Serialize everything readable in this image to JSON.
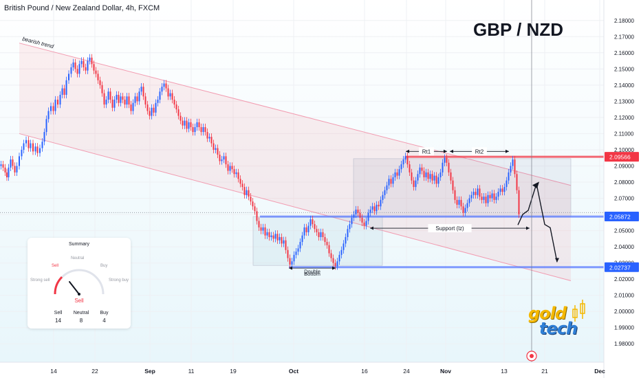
{
  "header": {
    "symbol_line": "British Pound / New Zealand Dollar, 4h, FXCM",
    "big_title": "GBP / NZD"
  },
  "chart_data": {
    "type": "candlestick",
    "ylim": [
      1.975,
      2.185
    ],
    "y_ticks": [
      "2.18000",
      "2.17000",
      "2.16000",
      "2.15000",
      "2.14000",
      "2.13000",
      "2.12000",
      "2.11000",
      "2.10000",
      "2.09000",
      "2.08000",
      "2.07000",
      "2.06000",
      "2.05000",
      "2.04000",
      "2.03000",
      "2.02000",
      "2.01000",
      "2.00000",
      "1.99000",
      "1.98000"
    ],
    "x_ticks": [
      "14",
      "22",
      "Sep",
      "11",
      "19",
      "Oct",
      "16",
      "24",
      "Nov",
      "13",
      "21",
      "Dec"
    ],
    "price_tags": [
      {
        "value": "2.09566",
        "color": "#f23645"
      },
      {
        "value": "2.05872",
        "color": "#2962ff"
      },
      {
        "value": "2.02737",
        "color": "#2962ff"
      }
    ],
    "horizontal_levels": [
      {
        "value": 2.0957,
        "color": "#f23645"
      },
      {
        "value": 2.0587,
        "color": "#5b7bff"
      },
      {
        "value": 2.0274,
        "color": "#5b7bff"
      }
    ],
    "candle_path": [
      [
        0,
        2.09
      ],
      [
        3,
        2.091
      ],
      [
        6,
        2.089
      ],
      [
        9,
        2.086
      ],
      [
        11,
        2.083
      ],
      [
        14,
        2.089
      ],
      [
        17,
        2.094
      ],
      [
        20,
        2.09
      ],
      [
        23,
        2.086
      ],
      [
        26,
        2.09
      ],
      [
        30,
        2.096
      ],
      [
        33,
        2.1
      ],
      [
        36,
        2.104
      ],
      [
        40,
        2.106
      ],
      [
        43,
        2.101
      ],
      [
        46,
        2.104
      ],
      [
        50,
        2.099
      ],
      [
        53,
        2.102
      ],
      [
        56,
        2.098
      ],
      [
        60,
        2.101
      ],
      [
        63,
        2.105
      ],
      [
        66,
        2.111
      ],
      [
        69,
        2.119
      ],
      [
        72,
        2.124
      ],
      [
        76,
        2.127
      ],
      [
        79,
        2.124
      ],
      [
        82,
        2.131
      ],
      [
        86,
        2.128
      ],
      [
        89,
        2.134
      ],
      [
        92,
        2.138
      ],
      [
        95,
        2.134
      ],
      [
        98,
        2.143
      ],
      [
        102,
        2.147
      ],
      [
        105,
        2.151
      ],
      [
        108,
        2.154
      ],
      [
        111,
        2.15
      ],
      [
        114,
        2.147
      ],
      [
        117,
        2.153
      ],
      [
        120,
        2.155
      ],
      [
        123,
        2.151
      ],
      [
        126,
        2.149
      ],
      [
        129,
        2.155
      ],
      [
        132,
        2.157
      ],
      [
        135,
        2.153
      ],
      [
        138,
        2.149
      ],
      [
        141,
        2.147
      ],
      [
        144,
        2.143
      ],
      [
        147,
        2.14
      ],
      [
        150,
        2.135
      ],
      [
        153,
        2.128
      ],
      [
        156,
        2.131
      ],
      [
        159,
        2.136
      ],
      [
        162,
        2.131
      ],
      [
        165,
        2.126
      ],
      [
        168,
        2.131
      ],
      [
        171,
        2.134
      ],
      [
        174,
        2.129
      ],
      [
        177,
        2.133
      ],
      [
        180,
        2.131
      ],
      [
        183,
        2.128
      ],
      [
        186,
        2.133
      ],
      [
        189,
        2.128
      ],
      [
        192,
        2.124
      ],
      [
        195,
        2.129
      ],
      [
        198,
        2.133
      ],
      [
        201,
        2.13
      ],
      [
        204,
        2.136
      ],
      [
        207,
        2.139
      ],
      [
        210,
        2.133
      ],
      [
        213,
        2.128
      ],
      [
        216,
        2.124
      ],
      [
        219,
        2.121
      ],
      [
        222,
        2.126
      ],
      [
        225,
        2.123
      ],
      [
        228,
        2.129
      ],
      [
        231,
        2.131
      ],
      [
        234,
        2.136
      ],
      [
        237,
        2.139
      ],
      [
        240,
        2.141
      ],
      [
        243,
        2.138
      ],
      [
        246,
        2.133
      ],
      [
        249,
        2.135
      ],
      [
        252,
        2.131
      ],
      [
        255,
        2.128
      ],
      [
        258,
        2.125
      ],
      [
        261,
        2.121
      ],
      [
        264,
        2.118
      ],
      [
        267,
        2.115
      ],
      [
        270,
        2.118
      ],
      [
        273,
        2.113
      ],
      [
        276,
        2.117
      ],
      [
        279,
        2.114
      ],
      [
        282,
        2.111
      ],
      [
        285,
        2.114
      ],
      [
        288,
        2.117
      ],
      [
        291,
        2.114
      ],
      [
        294,
        2.111
      ],
      [
        297,
        2.114
      ],
      [
        300,
        2.111
      ],
      [
        303,
        2.107
      ],
      [
        306,
        2.108
      ],
      [
        309,
        2.104
      ],
      [
        312,
        2.1
      ],
      [
        315,
        2.101
      ],
      [
        318,
        2.097
      ],
      [
        321,
        2.093
      ],
      [
        324,
        2.094
      ],
      [
        327,
        2.096
      ],
      [
        330,
        2.091
      ],
      [
        333,
        2.087
      ],
      [
        336,
        2.09
      ],
      [
        339,
        2.088
      ],
      [
        342,
        2.085
      ],
      [
        345,
        2.086
      ],
      [
        348,
        2.082
      ],
      [
        351,
        2.079
      ],
      [
        354,
        2.077
      ],
      [
        357,
        2.072
      ],
      [
        360,
        2.075
      ],
      [
        363,
        2.071
      ],
      [
        366,
        2.068
      ],
      [
        369,
        2.065
      ],
      [
        372,
        2.062
      ],
      [
        375,
        2.056
      ],
      [
        378,
        2.052
      ],
      [
        381,
        2.05
      ],
      [
        384,
        2.052
      ],
      [
        387,
        2.047
      ],
      [
        390,
        2.049
      ],
      [
        393,
        2.046
      ],
      [
        396,
        2.047
      ],
      [
        399,
        2.045
      ],
      [
        402,
        2.048
      ],
      [
        405,
        2.044
      ],
      [
        408,
        2.046
      ],
      [
        411,
        2.042
      ],
      [
        414,
        2.044
      ],
      [
        417,
        2.038
      ],
      [
        420,
        2.033
      ],
      [
        423,
        2.029
      ],
      [
        426,
        2.031
      ],
      [
        429,
        2.035
      ],
      [
        432,
        2.037
      ],
      [
        435,
        2.039
      ],
      [
        438,
        2.043
      ],
      [
        441,
        2.047
      ],
      [
        444,
        2.052
      ],
      [
        447,
        2.049
      ],
      [
        450,
        2.053
      ],
      [
        453,
        2.057
      ],
      [
        456,
        2.054
      ],
      [
        459,
        2.051
      ],
      [
        462,
        2.049
      ],
      [
        465,
        2.046
      ],
      [
        468,
        2.049
      ],
      [
        471,
        2.046
      ],
      [
        474,
        2.043
      ],
      [
        477,
        2.041
      ],
      [
        480,
        2.036
      ],
      [
        483,
        2.033
      ],
      [
        486,
        2.03
      ],
      [
        489,
        2.028
      ],
      [
        492,
        2.031
      ],
      [
        495,
        2.035
      ],
      [
        498,
        2.038
      ],
      [
        501,
        2.042
      ],
      [
        504,
        2.046
      ],
      [
        507,
        2.051
      ],
      [
        510,
        2.054
      ],
      [
        513,
        2.058
      ],
      [
        516,
        2.06
      ],
      [
        519,
        2.063
      ],
      [
        522,
        2.061
      ],
      [
        525,
        2.058
      ],
      [
        528,
        2.055
      ],
      [
        531,
        2.053
      ],
      [
        534,
        2.056
      ],
      [
        537,
        2.061
      ],
      [
        540,
        2.063
      ],
      [
        543,
        2.065
      ],
      [
        546,
        2.062
      ],
      [
        549,
        2.066
      ],
      [
        552,
        2.065
      ],
      [
        555,
        2.069
      ],
      [
        558,
        2.072
      ],
      [
        561,
        2.075
      ],
      [
        564,
        2.078
      ],
      [
        567,
        2.082
      ],
      [
        570,
        2.079
      ],
      [
        573,
        2.083
      ],
      [
        576,
        2.086
      ],
      [
        579,
        2.084
      ],
      [
        582,
        2.088
      ],
      [
        585,
        2.091
      ],
      [
        588,
        2.094
      ],
      [
        591,
        2.096
      ],
      [
        594,
        2.091
      ],
      [
        597,
        2.086
      ],
      [
        600,
        2.081
      ],
      [
        603,
        2.077
      ],
      [
        606,
        2.081
      ],
      [
        609,
        2.085
      ],
      [
        612,
        2.089
      ],
      [
        615,
        2.087
      ],
      [
        618,
        2.083
      ],
      [
        621,
        2.086
      ],
      [
        624,
        2.082
      ],
      [
        627,
        2.085
      ],
      [
        630,
        2.081
      ],
      [
        633,
        2.084
      ],
      [
        636,
        2.079
      ],
      [
        639,
        2.083
      ],
      [
        642,
        2.086
      ],
      [
        645,
        2.092
      ],
      [
        648,
        2.095
      ],
      [
        651,
        2.092
      ],
      [
        654,
        2.086
      ],
      [
        657,
        2.081
      ],
      [
        660,
        2.075
      ],
      [
        663,
        2.069
      ],
      [
        666,
        2.066
      ],
      [
        669,
        2.069
      ],
      [
        672,
        2.065
      ],
      [
        675,
        2.061
      ],
      [
        678,
        2.064
      ],
      [
        681,
        2.067
      ],
      [
        684,
        2.07
      ],
      [
        687,
        2.072
      ],
      [
        690,
        2.074
      ],
      [
        693,
        2.072
      ],
      [
        696,
        2.076
      ],
      [
        699,
        2.071
      ],
      [
        702,
        2.069
      ],
      [
        705,
        2.071
      ],
      [
        708,
        2.067
      ],
      [
        711,
        2.072
      ],
      [
        714,
        2.07
      ],
      [
        717,
        2.073
      ],
      [
        720,
        2.069
      ],
      [
        723,
        2.071
      ],
      [
        726,
        2.074
      ],
      [
        729,
        2.076
      ],
      [
        732,
        2.074
      ],
      [
        735,
        2.077
      ],
      [
        738,
        2.081
      ],
      [
        741,
        2.086
      ],
      [
        744,
        2.09
      ],
      [
        747,
        2.094
      ],
      [
        750,
        2.085
      ],
      [
        753,
        2.075
      ],
      [
        756,
        2.06
      ]
    ],
    "channel": {
      "upper": [
        [
          28,
          2.166
        ],
        [
          830,
          2.078
        ]
      ],
      "lower": [
        [
          28,
          2.11
        ],
        [
          830,
          2.019
        ]
      ],
      "label": "bearish trend"
    },
    "zones": [
      {
        "x": [
          368,
          556
        ],
        "y": [
          2.0285,
          2.0587
        ]
      },
      {
        "x": [
          514,
          830
        ],
        "y": [
          2.0587,
          2.0945
        ]
      }
    ],
    "annotations": [
      {
        "text": "Rt1",
        "x": [
          590,
          650
        ],
        "y": 2.099
      },
      {
        "text": "Rt2",
        "x": [
          654,
          740
        ],
        "y": 2.099
      },
      {
        "text": "Support (lz)",
        "x": [
          538,
          770
        ],
        "y": 2.0515
      },
      {
        "text": "Double",
        "x": [
          420,
          488
        ],
        "y": 2.025
      },
      {
        "text": "Bottom",
        "x": [
          420,
          488
        ],
        "y": 2.0235
      }
    ],
    "projection_path": [
      [
        753,
        2.0535
      ],
      [
        760,
        2.06
      ],
      [
        768,
        2.0625
      ],
      [
        780,
        2.079
      ],
      [
        792,
        2.0538
      ],
      [
        800,
        2.0518
      ],
      [
        810,
        2.0305
      ]
    ],
    "last_price": 2.0612,
    "cursor_x_date": "16-17 Nov"
  },
  "summary": {
    "title": "Summary",
    "labels": {
      "strong_sell": "Strong sell",
      "sell": "Sell",
      "neutral": "Neutral",
      "buy": "Buy",
      "strong_buy": "Strong buy"
    },
    "verdict": "Sell",
    "counts": [
      {
        "label": "Sell",
        "value": "14"
      },
      {
        "label": "Neutral",
        "value": "8"
      },
      {
        "label": "Buy",
        "value": "4"
      }
    ]
  },
  "logo": {
    "word1": "gold",
    "word2": "tech"
  }
}
